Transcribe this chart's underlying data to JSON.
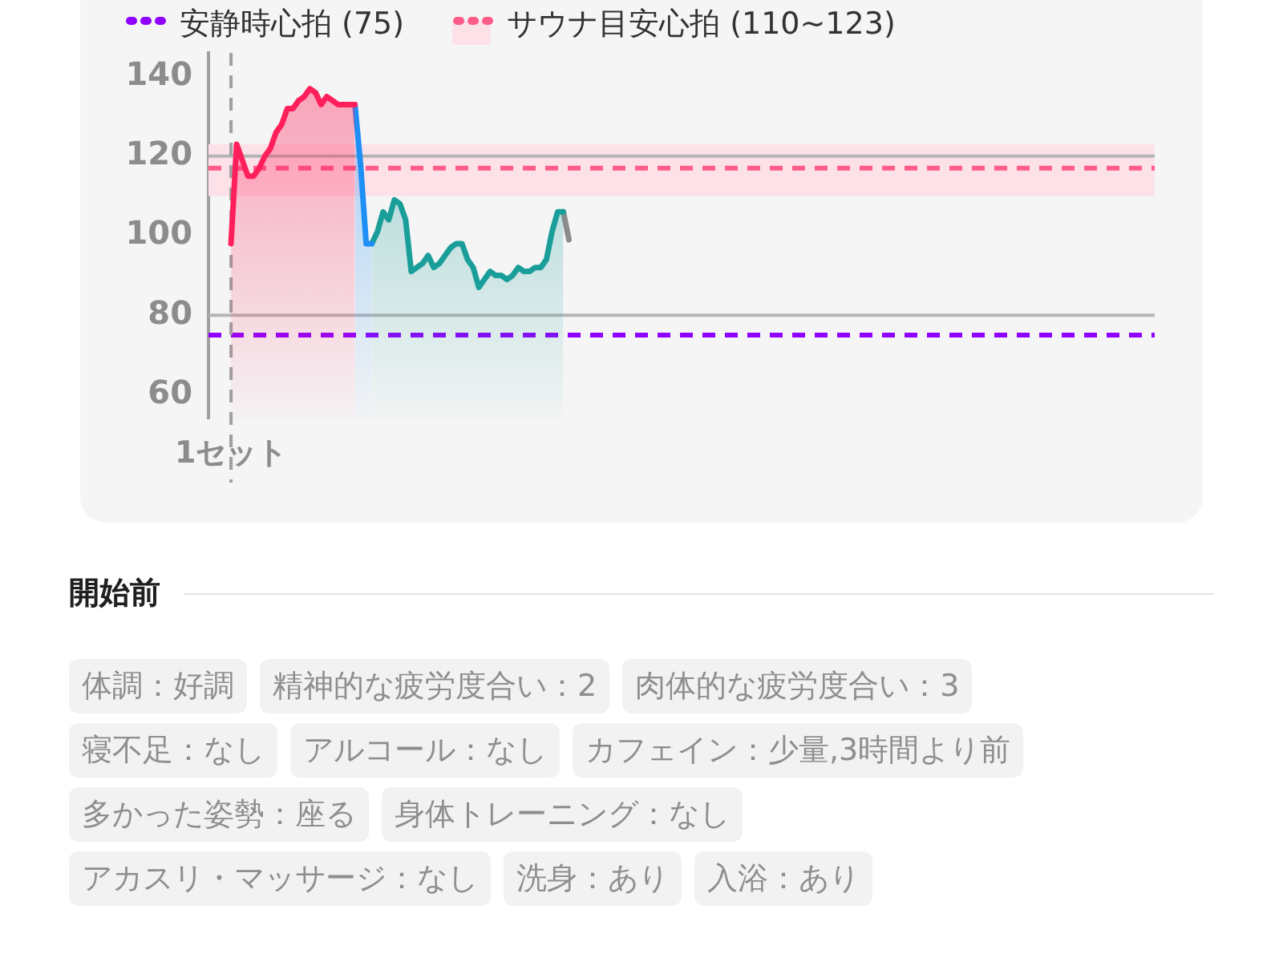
{
  "chart_data": [
    {
      "type": "area",
      "categories": [
        null,
        null,
        null,
        null,
        "1セット",
        null,
        null,
        null,
        null,
        null,
        null,
        null,
        null,
        null,
        null,
        null,
        null,
        null,
        null,
        null,
        null,
        null,
        null,
        null,
        null,
        null,
        null,
        null,
        null,
        null,
        null,
        null,
        null,
        null,
        null,
        null,
        null,
        null,
        null,
        null,
        null,
        null,
        null,
        null,
        null,
        null,
        null,
        null,
        null,
        null,
        null,
        null,
        null,
        null,
        null,
        null,
        null,
        null,
        null,
        null,
        null,
        null,
        null,
        null,
        null,
        null,
        null,
        null,
        null,
        null,
        null,
        null,
        null,
        null,
        null,
        null,
        null,
        null,
        null,
        null,
        null,
        null,
        null,
        null,
        null,
        null,
        null,
        null,
        null,
        null,
        null,
        null,
        null,
        null,
        null,
        null,
        null,
        null,
        null,
        null,
        null,
        null,
        null,
        null,
        null,
        null,
        null,
        null,
        null,
        null,
        null,
        null,
        null,
        null,
        null,
        null,
        null,
        null,
        null,
        null,
        null,
        null,
        null,
        null,
        null,
        null,
        null,
        null,
        null,
        null,
        null,
        null,
        null,
        null,
        null,
        null,
        null,
        null,
        null,
        null,
        null,
        null,
        null,
        null,
        null,
        null,
        null,
        null,
        null,
        null,
        null,
        null,
        null,
        null,
        null,
        null,
        null,
        null,
        null,
        null,
        null,
        null,
        null,
        null,
        null,
        null,
        null,
        null,
        null
      ],
      "series": [
        {
          "color": "#ff1f5a",
          "values": [
            null,
            null,
            null,
            null,
            98,
            123,
            119,
            115,
            115,
            117,
            120,
            122,
            126,
            128,
            132,
            132,
            134,
            135,
            137,
            136,
            133,
            135,
            134,
            133,
            133,
            133,
            133,
            null,
            null,
            null,
            null,
            null,
            null,
            null,
            null,
            null,
            null,
            null,
            null,
            null,
            null,
            null,
            null,
            null,
            null,
            null,
            null,
            null,
            null,
            null,
            null,
            null,
            null,
            null,
            null,
            null,
            null,
            null,
            null,
            null,
            null,
            null,
            null,
            null,
            null,
            null,
            null,
            null,
            null,
            null,
            null,
            null,
            null,
            null,
            null,
            null,
            null,
            null,
            null,
            null,
            null,
            null,
            null,
            null,
            null,
            null,
            null,
            null,
            null,
            null,
            null,
            null,
            null,
            null,
            null,
            null,
            null,
            null,
            null,
            null,
            null,
            null,
            null,
            null,
            null,
            null,
            null,
            null,
            null,
            null,
            null,
            null,
            null,
            null,
            null,
            null,
            null,
            null,
            null,
            null,
            null,
            null,
            null,
            null,
            null,
            null,
            null,
            null,
            null,
            null,
            null,
            null,
            null,
            null,
            null,
            null,
            null,
            null,
            null,
            null,
            null,
            null,
            null,
            null,
            null,
            null,
            null,
            null,
            null,
            null,
            null,
            null,
            null,
            null,
            null,
            null,
            null,
            null,
            null,
            null,
            null,
            null,
            null,
            null,
            null,
            null,
            null,
            null,
            null
          ]
        },
        {
          "color": "#1e8ff5",
          "values": [
            null,
            null,
            null,
            null,
            null,
            null,
            null,
            null,
            null,
            null,
            null,
            null,
            null,
            null,
            null,
            null,
            null,
            null,
            null,
            null,
            null,
            null,
            null,
            null,
            null,
            null,
            133,
            118,
            98,
            98,
            null,
            null,
            null,
            null,
            null,
            null,
            null,
            null,
            null,
            null,
            null,
            null,
            null,
            null,
            null,
            null,
            null,
            null,
            null,
            null,
            null,
            null,
            null,
            null,
            null,
            null,
            null,
            null,
            null,
            null,
            null,
            null,
            null,
            null,
            null,
            null,
            null,
            null,
            null,
            null,
            null,
            null,
            null,
            null,
            null,
            null,
            null,
            null,
            null,
            null,
            null,
            null,
            null,
            null,
            null,
            null,
            null,
            null,
            null,
            null,
            null,
            null,
            null,
            null,
            null,
            null,
            null,
            null,
            null,
            null,
            null,
            null,
            null,
            null,
            null,
            null,
            null,
            null,
            null,
            null,
            null,
            null,
            null,
            null,
            null,
            null,
            null,
            null,
            null,
            null,
            null,
            null,
            null,
            null,
            null,
            null,
            null,
            null,
            null,
            null,
            null,
            null,
            null,
            null,
            null,
            null,
            null,
            null,
            null,
            null,
            null,
            null,
            null,
            null,
            null,
            null,
            null,
            null,
            null,
            null,
            null,
            null,
            null,
            null,
            null,
            null,
            null,
            null,
            null,
            null,
            null,
            null,
            null,
            null,
            null,
            null,
            null,
            null,
            null
          ]
        },
        {
          "color": "#1a9e9a",
          "values": [
            null,
            null,
            null,
            null,
            null,
            null,
            null,
            null,
            null,
            null,
            null,
            null,
            null,
            null,
            null,
            null,
            null,
            null,
            null,
            null,
            null,
            null,
            null,
            null,
            null,
            null,
            null,
            null,
            null,
            98,
            101,
            106,
            104,
            109,
            108,
            104,
            91,
            92,
            93,
            95,
            92,
            93,
            95,
            97,
            98,
            98,
            94,
            92,
            87,
            89,
            91,
            90,
            90,
            89,
            90,
            92,
            91,
            91,
            92,
            92,
            94,
            101,
            106,
            106,
            null,
            null,
            null,
            null,
            null,
            null,
            null,
            null,
            null,
            null,
            null,
            null,
            null,
            null,
            null,
            null,
            null,
            null,
            null,
            null,
            null,
            null,
            null,
            null,
            null,
            null,
            null,
            null,
            null,
            null,
            null,
            null,
            null,
            null,
            null,
            null,
            null,
            null,
            null,
            null,
            null,
            null,
            null,
            null,
            null,
            null,
            null,
            null,
            null,
            null,
            null,
            null,
            null,
            null,
            null,
            null,
            null,
            null,
            null,
            null,
            null,
            null,
            null,
            null,
            null,
            null,
            null,
            null,
            null,
            null,
            null,
            null,
            null,
            null,
            null,
            null,
            null,
            null,
            null,
            null,
            null,
            null,
            null,
            null,
            null,
            null,
            null,
            null,
            null,
            null,
            null,
            null,
            null,
            null,
            null,
            null,
            null,
            null,
            null,
            null,
            null,
            null,
            null,
            null,
            null
          ]
        },
        {
          "type": "line",
          "color": "#8c8c8c",
          "values": [
            null,
            null,
            null,
            null,
            null,
            null,
            null,
            null,
            null,
            null,
            null,
            null,
            null,
            null,
            null,
            null,
            null,
            null,
            null,
            null,
            null,
            null,
            null,
            null,
            null,
            null,
            null,
            null,
            null,
            null,
            null,
            null,
            null,
            null,
            null,
            null,
            null,
            null,
            null,
            null,
            null,
            null,
            null,
            null,
            null,
            null,
            null,
            null,
            null,
            null,
            null,
            null,
            null,
            null,
            null,
            null,
            null,
            null,
            null,
            null,
            null,
            null,
            null,
            106,
            99,
            null,
            null,
            null,
            null,
            null,
            null,
            null,
            null,
            null,
            null,
            null,
            null,
            null,
            null,
            null,
            null,
            null,
            null,
            null,
            null,
            null,
            null,
            null,
            null,
            null,
            null,
            null,
            null,
            null,
            null,
            null,
            null,
            null,
            null,
            null,
            null,
            null,
            null,
            null,
            null,
            null,
            null,
            null,
            null,
            null,
            null,
            null,
            null,
            null,
            null,
            null,
            null,
            null,
            null,
            null,
            null,
            null,
            null,
            null,
            null,
            null,
            null,
            null,
            null,
            null,
            null,
            null,
            null,
            null,
            null,
            null,
            null,
            null,
            null,
            null,
            null,
            null,
            null,
            null,
            null,
            null,
            null,
            null,
            null,
            null,
            null,
            null,
            null,
            null,
            null,
            null,
            null,
            null,
            null,
            null,
            null,
            null,
            null,
            null,
            null,
            null,
            null,
            null,
            null
          ]
        }
      ],
      "ylim": [
        54,
        146
      ],
      "yticks": [
        60,
        80,
        100,
        120,
        140
      ],
      "bands": [
        {
          "axis": "y",
          "from": 110,
          "to": 123,
          "color": "#fde1e8"
        }
      ],
      "ref_lines": [
        {
          "axis": "y",
          "value": 120,
          "color": "#b5b5b5"
        },
        {
          "axis": "y",
          "value": 80,
          "color": "#b5b5b5"
        },
        {
          "axis": "y",
          "value": 75,
          "label": "安静時心拍 (75)",
          "color": "#8f00ff",
          "line_style": "dashed"
        },
        {
          "axis": "y",
          "value": 117,
          "label": "サウナ目安心拍 (110~123)",
          "color": "#ff5c8a",
          "line_style": "dashed"
        },
        {
          "axis": "x",
          "value": "1セット",
          "color": "#a0a0a0",
          "line_style": "dashed"
        }
      ],
      "legend": "top"
    },
    {
      "type": "other",
      "title": "開始前",
      "annotations": [
        "体調：好調",
        "精神的な疲労度合い：2",
        "肉体的な疲労度合い：3",
        "寝不足：なし",
        "アルコール：なし",
        "カフェイン：少量,3時間より前",
        "多かった姿勢：座る",
        "身体トレーニング：なし",
        "アカスリ・マッサージ：なし",
        "洗身：あり",
        "入浴：あり"
      ]
    }
  ]
}
